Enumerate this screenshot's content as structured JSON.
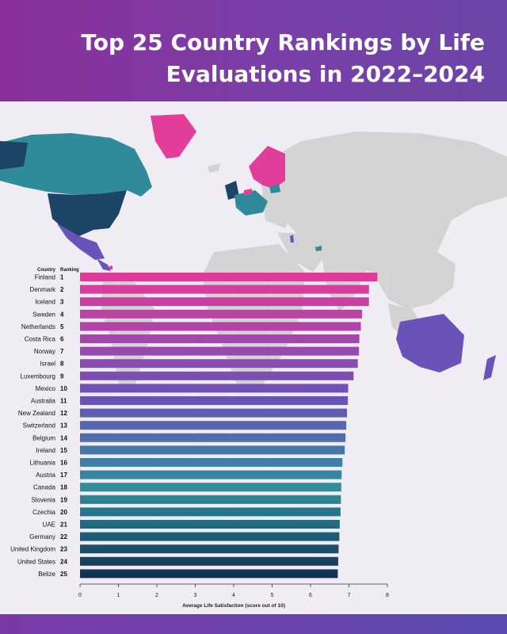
{
  "header": {
    "title": "Top 25 Country Rankings by Life Evaluations in 2022–2024"
  },
  "chart_data": {
    "type": "bar",
    "orientation": "horizontal",
    "column_headers": {
      "country": "Country",
      "ranking": "Ranking"
    },
    "categories": [
      "Finland",
      "Denmark",
      "Iceland",
      "Sweden",
      "Netherlands",
      "Costa Rica",
      "Norway",
      "Israel",
      "Luxembourg",
      "Mexico",
      "Australia",
      "New Zealand",
      "Switzerland",
      "Belgium",
      "Ireland",
      "Lithuania",
      "Austria",
      "Canada",
      "Slovenia",
      "Czechia",
      "UAE",
      "Germany",
      "United Kingdom",
      "United States",
      "Belize"
    ],
    "rankings": [
      "1",
      "2",
      "3",
      "4",
      "5",
      "6",
      "7",
      "8",
      "9",
      "10",
      "11",
      "12",
      "13",
      "14",
      "15",
      "16",
      "17",
      "18",
      "19",
      "20",
      "21",
      "22",
      "23",
      "24",
      "25"
    ],
    "values": [
      7.74,
      7.52,
      7.52,
      7.34,
      7.31,
      7.27,
      7.26,
      7.23,
      7.12,
      6.98,
      6.97,
      6.95,
      6.93,
      6.91,
      6.89,
      6.83,
      6.81,
      6.8,
      6.79,
      6.78,
      6.76,
      6.75,
      6.73,
      6.72,
      6.71
    ],
    "xlabel": "Average Life Satisfaction (score out of 10)",
    "xlim": [
      0,
      8
    ],
    "xticks": [
      "0",
      "1",
      "2",
      "3",
      "4",
      "5",
      "6",
      "7",
      "8"
    ],
    "color_start": "#e43a9a",
    "color_mid": "#6a52b8",
    "color_mid2": "#2f8f9c",
    "color_end": "#0f2a4e"
  },
  "map": {
    "base_color": "#d3d3d3",
    "highlight_colors": [
      "#e23d9a",
      "#6a52b8",
      "#2f8a9c",
      "#1b4466"
    ]
  }
}
